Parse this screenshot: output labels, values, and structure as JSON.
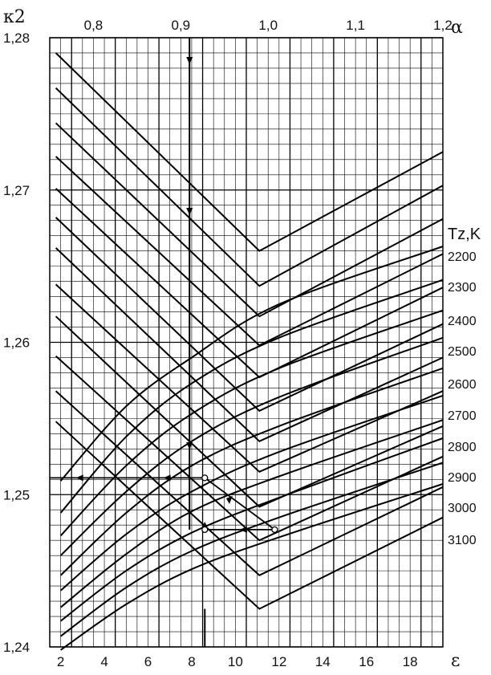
{
  "chart_data": {
    "type": "line",
    "title": "",
    "ylabel": "κ2",
    "xlabel_bottom": "ε",
    "xlabel_top": "α",
    "legend_title": "Tz,K",
    "ylim": [
      1.24,
      1.28
    ],
    "xlim_bottom": [
      1.5,
      19.5
    ],
    "xlim_top": [
      0.75,
      1.2
    ],
    "grid": true,
    "y_ticks": [
      "1,24",
      "1,25",
      "1,26",
      "1,27",
      "1,28"
    ],
    "y_tick_values": [
      1.24,
      1.25,
      1.26,
      1.27,
      1.28
    ],
    "x_bottom_ticks": [
      "2",
      "4",
      "6",
      "8",
      "10",
      "12",
      "14",
      "16",
      "18"
    ],
    "x_bottom_tick_values": [
      2,
      4,
      6,
      8,
      10,
      12,
      14,
      16,
      18
    ],
    "x_top_ticks": [
      "0,8",
      "0,9",
      "1,0",
      "1,1",
      "1,2"
    ],
    "x_top_tick_values": [
      0.8,
      0.9,
      1.0,
      1.1,
      1.2
    ],
    "alpha_series": [
      {
        "name": "2200",
        "points": [
          [
            0.757,
            1.279
          ],
          [
            0.99,
            1.266
          ],
          [
            1.2,
            1.2725
          ]
        ]
      },
      {
        "name": "2300",
        "points": [
          [
            0.757,
            1.2767
          ],
          [
            0.99,
            1.2637
          ],
          [
            1.2,
            1.2703
          ]
        ]
      },
      {
        "name": "2400",
        "points": [
          [
            0.757,
            1.2744
          ],
          [
            0.99,
            1.2617
          ],
          [
            1.2,
            1.2681
          ]
        ]
      },
      {
        "name": "2500",
        "points": [
          [
            0.757,
            1.2722
          ],
          [
            0.99,
            1.2598
          ],
          [
            1.2,
            1.2658
          ]
        ]
      },
      {
        "name": "2600",
        "points": [
          [
            0.757,
            1.2701
          ],
          [
            0.99,
            1.2577
          ],
          [
            1.2,
            1.2636
          ]
        ]
      },
      {
        "name": "2700",
        "points": [
          [
            0.757,
            1.2682
          ],
          [
            0.99,
            1.2555
          ],
          [
            1.2,
            1.2612
          ]
        ]
      },
      {
        "name": "2800",
        "points": [
          [
            0.757,
            1.2662
          ],
          [
            0.99,
            1.2535
          ],
          [
            1.2,
            1.259
          ]
        ]
      },
      {
        "name": "2900",
        "points": [
          [
            0.757,
            1.2638
          ],
          [
            0.99,
            1.2515
          ],
          [
            1.2,
            1.2568
          ]
        ]
      },
      {
        "name": "3000",
        "points": [
          [
            0.757,
            1.2617
          ],
          [
            0.99,
            1.2492
          ],
          [
            1.2,
            1.2545
          ]
        ]
      },
      {
        "name": "3100",
        "points": [
          [
            0.757,
            1.2591
          ],
          [
            0.99,
            1.247
          ],
          [
            1.2,
            1.2525
          ]
        ]
      },
      {
        "name": "",
        "points": [
          [
            0.757,
            1.2568
          ],
          [
            0.99,
            1.2447
          ],
          [
            1.2,
            1.2505
          ]
        ]
      },
      {
        "name": "",
        "points": [
          [
            0.757,
            1.2548
          ],
          [
            0.99,
            1.2425
          ],
          [
            1.2,
            1.2485
          ]
        ]
      }
    ],
    "eps_series": [
      {
        "name": "2200",
        "points": [
          [
            2,
            1.2509
          ],
          [
            5,
            1.2558
          ],
          [
            8,
            1.259
          ],
          [
            12,
            1.2625
          ],
          [
            19.5,
            1.2663
          ]
        ]
      },
      {
        "name": "2300",
        "points": [
          [
            2,
            1.2488
          ],
          [
            5,
            1.2538
          ],
          [
            8,
            1.2573
          ],
          [
            12,
            1.2603
          ],
          [
            19.5,
            1.2641
          ]
        ]
      },
      {
        "name": "2400",
        "points": [
          [
            2,
            1.2473
          ],
          [
            5,
            1.2519
          ],
          [
            8,
            1.2553
          ],
          [
            12,
            1.2583
          ],
          [
            19.5,
            1.2621
          ]
        ]
      },
      {
        "name": "2500",
        "points": [
          [
            2,
            1.246
          ],
          [
            5,
            1.2502
          ],
          [
            8,
            1.2535
          ],
          [
            12,
            1.2564
          ],
          [
            19.5,
            1.2603
          ]
        ]
      },
      {
        "name": "2600",
        "points": [
          [
            2,
            1.2447
          ],
          [
            5,
            1.2488
          ],
          [
            8,
            1.2519
          ],
          [
            12,
            1.2545
          ],
          [
            19.5,
            1.2583
          ]
        ]
      },
      {
        "name": "2700",
        "points": [
          [
            2,
            1.2437
          ],
          [
            5,
            1.2474
          ],
          [
            8,
            1.2502
          ],
          [
            12,
            1.2528
          ],
          [
            19.5,
            1.2565
          ]
        ]
      },
      {
        "name": "2800",
        "points": [
          [
            2,
            1.2426
          ],
          [
            5,
            1.2461
          ],
          [
            8,
            1.2489
          ],
          [
            12,
            1.2512
          ],
          [
            19.5,
            1.2549
          ]
        ]
      },
      {
        "name": "2900",
        "points": [
          [
            2,
            1.2417
          ],
          [
            5,
            1.245
          ],
          [
            8,
            1.2475
          ],
          [
            12,
            1.2498
          ],
          [
            19.5,
            1.2537
          ]
        ]
      },
      {
        "name": "3000",
        "points": [
          [
            2,
            1.2407
          ],
          [
            5,
            1.2439
          ],
          [
            8,
            1.2463
          ],
          [
            12,
            1.2485
          ],
          [
            19.5,
            1.2521
          ]
        ]
      },
      {
        "name": "3100",
        "points": [
          [
            2,
            1.2398
          ],
          [
            5,
            1.2428
          ],
          [
            8,
            1.2451
          ],
          [
            12,
            1.2472
          ],
          [
            19.5,
            1.2507
          ]
        ]
      }
    ],
    "example_path": {
      "alpha_marker": 0.91,
      "eps_marker": 8.6,
      "points": [
        [
          8.6,
          1.2477
        ],
        [
          11.8,
          1.2477
        ],
        [
          8.6,
          1.2511
        ],
        [
          1.5,
          1.2511
        ]
      ]
    }
  }
}
